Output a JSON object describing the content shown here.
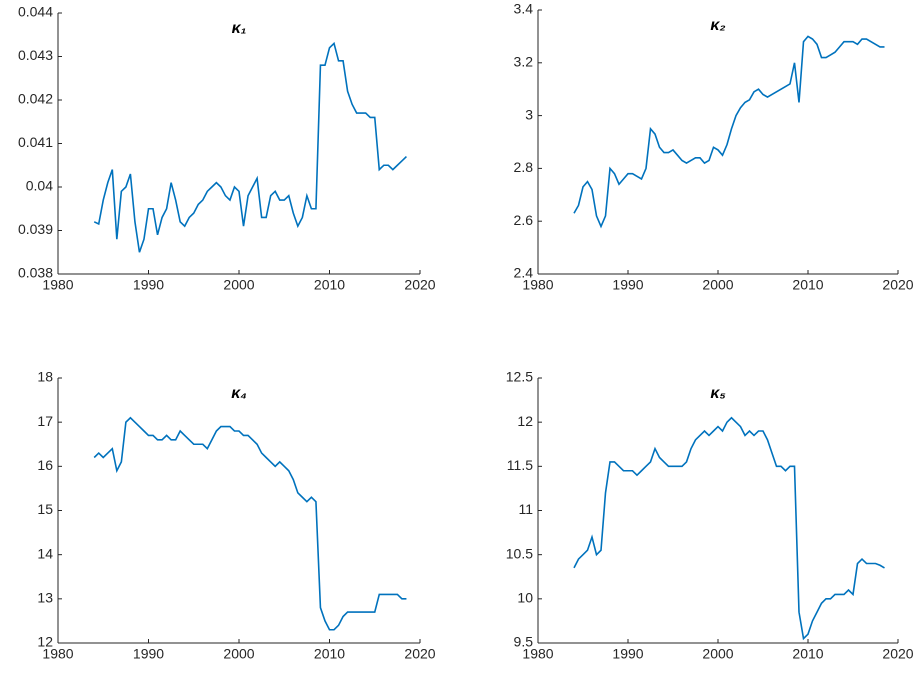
{
  "chart_data": [
    {
      "type": "line",
      "title": "κ₁",
      "color": "#0072bd",
      "x": [
        1984,
        1984.5,
        1985,
        1985.5,
        1986,
        1986.5,
        1987,
        1987.5,
        1988,
        1988.5,
        1989,
        1989.5,
        1990,
        1990.5,
        1991,
        1991.5,
        1992,
        1992.5,
        1993,
        1993.5,
        1994,
        1994.5,
        1995,
        1995.5,
        1996,
        1996.5,
        1997,
        1997.5,
        1998,
        1998.5,
        1999,
        1999.5,
        2000,
        2000.5,
        2001,
        2001.5,
        2002,
        2002.5,
        2003,
        2003.5,
        2004,
        2004.5,
        2005,
        2005.5,
        2006,
        2006.5,
        2007,
        2007.5,
        2008,
        2008.5,
        2009,
        2009.5,
        2010,
        2010.5,
        2011,
        2011.5,
        2012,
        2012.5,
        2013,
        2013.5,
        2014,
        2014.5,
        2015,
        2015.5,
        2016,
        2016.5,
        2017,
        2017.5,
        2018,
        2018.5
      ],
      "values": [
        0.0392,
        0.03915,
        0.0397,
        0.0401,
        0.0404,
        0.0388,
        0.0399,
        0.04,
        0.0403,
        0.0392,
        0.0385,
        0.0388,
        0.0395,
        0.0395,
        0.0389,
        0.0393,
        0.0395,
        0.0401,
        0.0397,
        0.0392,
        0.0391,
        0.0393,
        0.0394,
        0.0396,
        0.0397,
        0.0399,
        0.04,
        0.0401,
        0.04,
        0.0398,
        0.0397,
        0.04,
        0.0399,
        0.0391,
        0.0398,
        0.04,
        0.0402,
        0.0393,
        0.0393,
        0.0398,
        0.0399,
        0.0397,
        0.0397,
        0.0398,
        0.0394,
        0.0391,
        0.0393,
        0.0398,
        0.0395,
        0.0395,
        0.0428,
        0.0428,
        0.0432,
        0.0433,
        0.0429,
        0.0429,
        0.0422,
        0.0419,
        0.0417,
        0.0417,
        0.0417,
        0.0416,
        0.0416,
        0.0404,
        0.0405,
        0.0405,
        0.0404,
        0.0405,
        0.0406,
        0.0407
      ],
      "xlim": [
        1980,
        2020
      ],
      "xticks": [
        1980,
        1990,
        2000,
        2010,
        2020
      ],
      "ylim": [
        0.038,
        0.044
      ],
      "yticks": [
        0.038,
        0.039,
        0.04,
        0.041,
        0.042,
        0.043,
        0.044
      ]
    },
    {
      "type": "line",
      "title": "κ₂",
      "color": "#0072bd",
      "x": [
        1984,
        1984.5,
        1985,
        1985.5,
        1986,
        1986.5,
        1987,
        1987.5,
        1988,
        1988.5,
        1989,
        1989.5,
        1990,
        1990.5,
        1991,
        1991.5,
        1992,
        1992.5,
        1993,
        1993.5,
        1994,
        1994.5,
        1995,
        1995.5,
        1996,
        1996.5,
        1997,
        1997.5,
        1998,
        1998.5,
        1999,
        1999.5,
        2000,
        2000.5,
        2001,
        2001.5,
        2002,
        2002.5,
        2003,
        2003.5,
        2004,
        2004.5,
        2005,
        2005.5,
        2006,
        2006.5,
        2007,
        2007.5,
        2008,
        2008.5,
        2009,
        2009.5,
        2010,
        2010.5,
        2011,
        2011.5,
        2012,
        2012.5,
        2013,
        2013.5,
        2014,
        2014.5,
        2015,
        2015.5,
        2016,
        2016.5,
        2017,
        2017.5,
        2018,
        2018.5
      ],
      "values": [
        2.63,
        2.66,
        2.73,
        2.75,
        2.72,
        2.62,
        2.58,
        2.62,
        2.8,
        2.78,
        2.74,
        2.76,
        2.78,
        2.78,
        2.77,
        2.76,
        2.8,
        2.95,
        2.93,
        2.88,
        2.86,
        2.86,
        2.87,
        2.85,
        2.83,
        2.82,
        2.83,
        2.84,
        2.84,
        2.82,
        2.83,
        2.88,
        2.87,
        2.85,
        2.89,
        2.95,
        3.0,
        3.03,
        3.05,
        3.06,
        3.09,
        3.1,
        3.08,
        3.07,
        3.08,
        3.09,
        3.1,
        3.11,
        3.12,
        3.2,
        3.05,
        3.28,
        3.3,
        3.29,
        3.27,
        3.22,
        3.22,
        3.23,
        3.24,
        3.26,
        3.28,
        3.28,
        3.28,
        3.27,
        3.29,
        3.29,
        3.28,
        3.27,
        3.26,
        3.26
      ],
      "xlim": [
        1980,
        2020
      ],
      "xticks": [
        1980,
        1990,
        2000,
        2010,
        2020
      ],
      "ylim": [
        2.4,
        3.4
      ],
      "yticks": [
        2.4,
        2.6,
        2.8,
        3,
        3.2,
        3.4
      ]
    },
    {
      "type": "line",
      "title": "κ₄",
      "color": "#0072bd",
      "x": [
        1984,
        1984.5,
        1985,
        1985.5,
        1986,
        1986.5,
        1987,
        1987.5,
        1988,
        1988.5,
        1989,
        1989.5,
        1990,
        1990.5,
        1991,
        1991.5,
        1992,
        1992.5,
        1993,
        1993.5,
        1994,
        1994.5,
        1995,
        1995.5,
        1996,
        1996.5,
        1997,
        1997.5,
        1998,
        1998.5,
        1999,
        1999.5,
        2000,
        2000.5,
        2001,
        2001.5,
        2002,
        2002.5,
        2003,
        2003.5,
        2004,
        2004.5,
        2005,
        2005.5,
        2006,
        2006.5,
        2007,
        2007.5,
        2008,
        2008.5,
        2009,
        2009.5,
        2010,
        2010.5,
        2011,
        2011.5,
        2012,
        2012.5,
        2013,
        2013.5,
        2014,
        2014.5,
        2015,
        2015.5,
        2016,
        2016.5,
        2017,
        2017.5,
        2018,
        2018.5
      ],
      "values": [
        16.2,
        16.3,
        16.2,
        16.3,
        16.4,
        15.9,
        16.1,
        17.0,
        17.1,
        17.0,
        16.9,
        16.8,
        16.7,
        16.7,
        16.6,
        16.6,
        16.7,
        16.6,
        16.6,
        16.8,
        16.7,
        16.6,
        16.5,
        16.5,
        16.5,
        16.4,
        16.6,
        16.8,
        16.9,
        16.9,
        16.9,
        16.8,
        16.8,
        16.7,
        16.7,
        16.6,
        16.5,
        16.3,
        16.2,
        16.1,
        16.0,
        16.1,
        16.0,
        15.9,
        15.7,
        15.4,
        15.3,
        15.2,
        15.3,
        15.2,
        12.8,
        12.5,
        12.3,
        12.3,
        12.4,
        12.6,
        12.7,
        12.7,
        12.7,
        12.7,
        12.7,
        12.7,
        12.7,
        13.1,
        13.1,
        13.1,
        13.1,
        13.1,
        13.0,
        13.0
      ],
      "xlim": [
        1980,
        2020
      ],
      "xticks": [
        1980,
        1990,
        2000,
        2010,
        2020
      ],
      "ylim": [
        12,
        18
      ],
      "yticks": [
        12,
        13,
        14,
        15,
        16,
        17,
        18
      ]
    },
    {
      "type": "line",
      "title": "κ₅",
      "color": "#0072bd",
      "x": [
        1984,
        1984.5,
        1985,
        1985.5,
        1986,
        1986.5,
        1987,
        1987.5,
        1988,
        1988.5,
        1989,
        1989.5,
        1990,
        1990.5,
        1991,
        1991.5,
        1992,
        1992.5,
        1993,
        1993.5,
        1994,
        1994.5,
        1995,
        1995.5,
        1996,
        1996.5,
        1997,
        1997.5,
        1998,
        1998.5,
        1999,
        1999.5,
        2000,
        2000.5,
        2001,
        2001.5,
        2002,
        2002.5,
        2003,
        2003.5,
        2004,
        2004.5,
        2005,
        2005.5,
        2006,
        2006.5,
        2007,
        2007.5,
        2008,
        2008.5,
        2009,
        2009.5,
        2010,
        2010.5,
        2011,
        2011.5,
        2012,
        2012.5,
        2013,
        2013.5,
        2014,
        2014.5,
        2015,
        2015.5,
        2016,
        2016.5,
        2017,
        2017.5,
        2018,
        2018.5
      ],
      "values": [
        10.35,
        10.45,
        10.5,
        10.55,
        10.7,
        10.5,
        10.55,
        11.2,
        11.55,
        11.55,
        11.5,
        11.45,
        11.45,
        11.45,
        11.4,
        11.45,
        11.5,
        11.55,
        11.7,
        11.6,
        11.55,
        11.5,
        11.5,
        11.5,
        11.5,
        11.55,
        11.7,
        11.8,
        11.85,
        11.9,
        11.85,
        11.9,
        11.95,
        11.9,
        12.0,
        12.05,
        12.0,
        11.95,
        11.85,
        11.9,
        11.85,
        11.9,
        11.9,
        11.8,
        11.65,
        11.5,
        11.5,
        11.45,
        11.5,
        11.5,
        9.85,
        9.55,
        9.6,
        9.75,
        9.85,
        9.95,
        10.0,
        10.0,
        10.05,
        10.05,
        10.05,
        10.1,
        10.05,
        10.4,
        10.45,
        10.4,
        10.4,
        10.4,
        10.38,
        10.35
      ],
      "xlim": [
        1980,
        2020
      ],
      "xticks": [
        1980,
        1990,
        2000,
        2010,
        2020
      ],
      "ylim": [
        9.5,
        12.5
      ],
      "yticks": [
        9.5,
        10,
        10.5,
        11,
        11.5,
        12,
        12.5
      ]
    }
  ]
}
